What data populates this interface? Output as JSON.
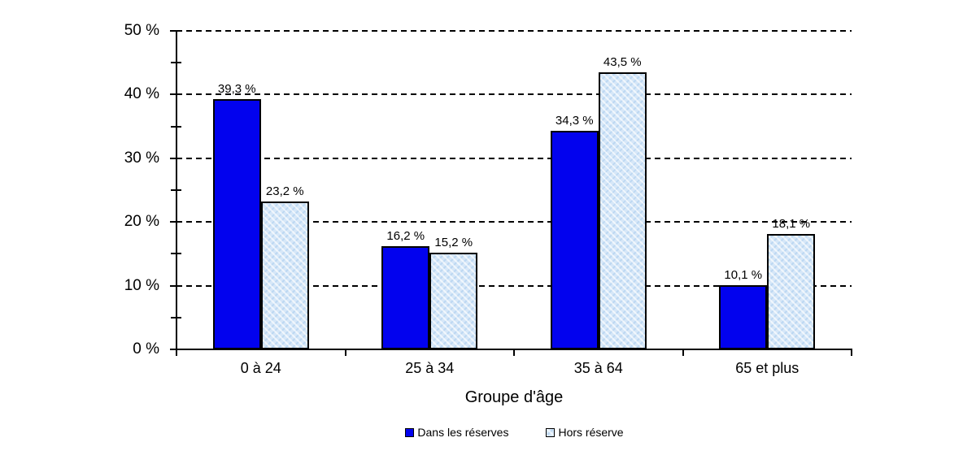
{
  "chart_data": {
    "type": "bar",
    "title": "",
    "xlabel": "Groupe d'âge",
    "ylabel": "",
    "categories": [
      "0 à 24",
      "25 à 34",
      "35 à 64",
      "65 et plus"
    ],
    "series": [
      {
        "name": "Dans les réserves",
        "color": "#0202ee",
        "pattern": "solid",
        "values": [
          39.3,
          16.2,
          34.3,
          10.1
        ],
        "value_labels": [
          "39,3 %",
          "16,2 %",
          "34,3 %",
          "10,1 %"
        ]
      },
      {
        "name": "Hors réserve",
        "color": "#d6e7f8",
        "pattern": "crosshatch",
        "values": [
          23.2,
          15.2,
          43.5,
          18.1
        ],
        "value_labels": [
          "23,2 %",
          "15,2 %",
          "43,5 %",
          "18,1 %"
        ]
      }
    ],
    "ylim": [
      0,
      50
    ],
    "ytick_step": 10,
    "ytick_minor_step": 5,
    "ytick_labels": [
      "0 %",
      "10 %",
      "20 %",
      "30 %",
      "40 %",
      "50 %"
    ],
    "grid": "horizontal-dashed",
    "legend_position": "bottom-center",
    "axis_color": "#000000",
    "background_color": "#ffffff"
  }
}
